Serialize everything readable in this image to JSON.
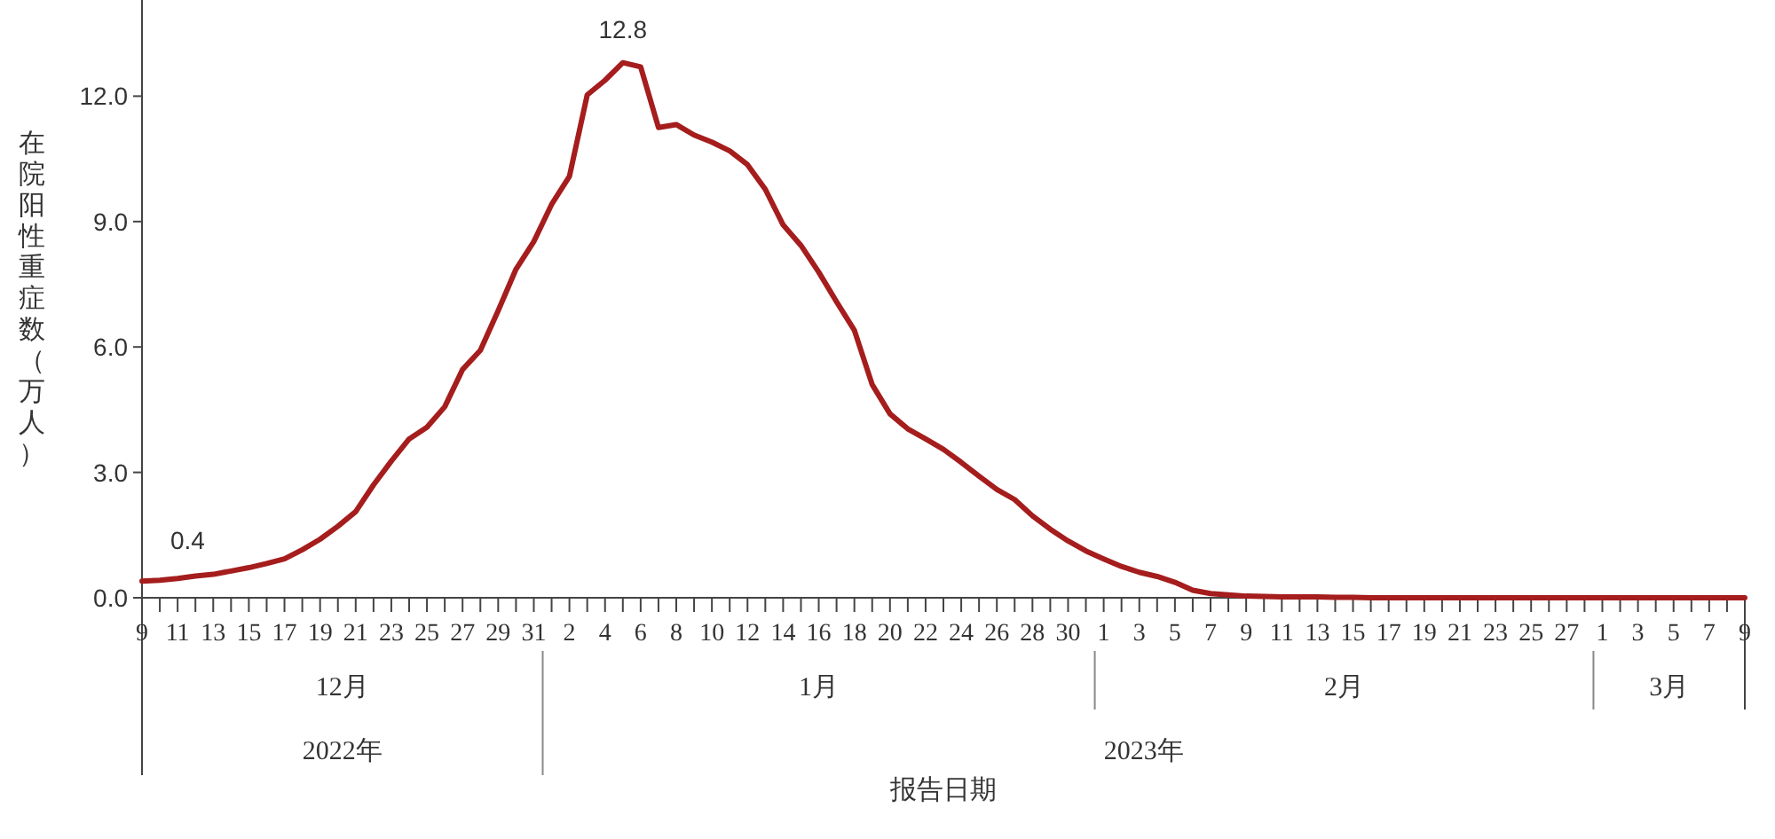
{
  "chart_data": {
    "type": "line",
    "xlabel": "报告日期",
    "ylabel": "在院阳性重症数（万人）",
    "annotations": [
      "12月",
      "1月",
      "2月",
      "3月",
      "2022年",
      "2023年"
    ],
    "x": [
      "2022-12-09",
      "2022-12-10",
      "2022-12-11",
      "2022-12-12",
      "2022-12-13",
      "2022-12-14",
      "2022-12-15",
      "2022-12-16",
      "2022-12-17",
      "2022-12-18",
      "2022-12-19",
      "2022-12-20",
      "2022-12-21",
      "2022-12-22",
      "2022-12-23",
      "2022-12-24",
      "2022-12-25",
      "2022-12-26",
      "2022-12-27",
      "2022-12-28",
      "2022-12-29",
      "2022-12-30",
      "2022-12-31",
      "2023-01-01",
      "2023-01-02",
      "2023-01-03",
      "2023-01-04",
      "2023-01-05",
      "2023-01-06",
      "2023-01-07",
      "2023-01-08",
      "2023-01-09",
      "2023-01-10",
      "2023-01-11",
      "2023-01-12",
      "2023-01-13",
      "2023-01-14",
      "2023-01-15",
      "2023-01-16",
      "2023-01-17",
      "2023-01-18",
      "2023-01-19",
      "2023-01-20",
      "2023-01-21",
      "2023-01-22",
      "2023-01-23",
      "2023-01-24",
      "2023-01-25",
      "2023-01-26",
      "2023-01-27",
      "2023-01-28",
      "2023-01-29",
      "2023-01-30",
      "2023-01-31",
      "2023-02-01",
      "2023-02-02",
      "2023-02-03",
      "2023-02-04",
      "2023-02-05",
      "2023-02-06",
      "2023-02-07",
      "2023-02-08",
      "2023-02-09",
      "2023-02-10",
      "2023-02-11",
      "2023-02-12",
      "2023-02-13",
      "2023-02-14",
      "2023-02-15",
      "2023-02-16",
      "2023-02-17",
      "2023-02-18",
      "2023-02-19",
      "2023-02-20",
      "2023-02-21",
      "2023-02-22",
      "2023-02-23",
      "2023-02-24",
      "2023-02-25",
      "2023-02-26",
      "2023-02-27",
      "2023-02-28",
      "2023-03-01",
      "2023-03-02",
      "2023-03-03",
      "2023-03-04",
      "2023-03-05",
      "2023-03-06",
      "2023-03-07",
      "2023-03-08",
      "2023-03-09"
    ],
    "series": [
      {
        "color": "#a51d1d",
        "values": [
          0.4,
          0.42,
          0.46,
          0.52,
          0.56,
          0.64,
          0.72,
          0.82,
          0.93,
          1.15,
          1.4,
          1.71,
          2.06,
          2.7,
          3.27,
          3.8,
          4.08,
          4.57,
          5.46,
          5.92,
          6.87,
          7.86,
          8.52,
          9.41,
          10.08,
          12.03,
          12.38,
          12.8,
          12.7,
          11.25,
          11.32,
          11.07,
          10.9,
          10.69,
          10.36,
          9.77,
          8.92,
          8.43,
          7.79,
          7.08,
          6.4,
          5.1,
          4.4,
          4.04,
          3.8,
          3.55,
          3.24,
          2.91,
          2.59,
          2.35,
          1.96,
          1.64,
          1.36,
          1.12,
          0.93,
          0.75,
          0.61,
          0.51,
          0.37,
          0.18,
          0.1,
          0.07,
          0.04,
          0.03,
          0.02,
          0.02,
          0.02,
          0.01,
          0.01,
          0,
          0,
          0,
          0,
          0,
          0,
          0,
          0,
          0,
          0,
          0,
          0,
          0,
          0,
          0,
          0,
          0,
          0,
          0,
          0,
          0,
          0
        ],
        "value_labels": [
          "0.4",
          null,
          null,
          null,
          null,
          null,
          null,
          null,
          null,
          null,
          null,
          null,
          null,
          null,
          null,
          null,
          null,
          null,
          null,
          null,
          null,
          null,
          null,
          null,
          null,
          null,
          null,
          "12.8",
          null,
          null,
          null,
          null,
          null,
          null,
          null,
          null,
          null,
          null,
          null,
          null,
          null,
          null,
          null,
          null,
          null,
          null,
          null,
          null,
          null,
          null,
          null,
          null,
          null,
          null,
          null,
          null,
          null,
          null,
          null,
          null,
          null,
          null,
          null,
          null,
          null,
          null,
          null,
          null,
          null,
          null,
          null,
          null,
          null,
          null,
          null,
          null,
          null,
          null,
          null,
          null,
          null,
          null,
          null,
          null,
          null,
          null,
          null,
          null,
          null,
          null,
          null
        ]
      }
    ],
    "xlim": [
      "2022-12-09",
      "2023-03-09"
    ],
    "xticks": [
      {
        "value": "2022-12-09",
        "label": "9"
      },
      {
        "value": "2022-12-10",
        "label": null
      },
      {
        "value": "2022-12-11",
        "label": "11"
      },
      {
        "value": "2022-12-12",
        "label": null
      },
      {
        "value": "2022-12-13",
        "label": "13"
      },
      {
        "value": "2022-12-14",
        "label": null
      },
      {
        "value": "2022-12-15",
        "label": "15"
      },
      {
        "value": "2022-12-16",
        "label": null
      },
      {
        "value": "2022-12-17",
        "label": "17"
      },
      {
        "value": "2022-12-18",
        "label": null
      },
      {
        "value": "2022-12-19",
        "label": "19"
      },
      {
        "value": "2022-12-20",
        "label": null
      },
      {
        "value": "2022-12-21",
        "label": "21"
      },
      {
        "value": "2022-12-22",
        "label": null
      },
      {
        "value": "2022-12-23",
        "label": "23"
      },
      {
        "value": "2022-12-24",
        "label": null
      },
      {
        "value": "2022-12-25",
        "label": "25"
      },
      {
        "value": "2022-12-26",
        "label": null
      },
      {
        "value": "2022-12-27",
        "label": "27"
      },
      {
        "value": "2022-12-28",
        "label": null
      },
      {
        "value": "2022-12-29",
        "label": "29"
      },
      {
        "value": "2022-12-30",
        "label": null
      },
      {
        "value": "2022-12-31",
        "label": "31"
      },
      {
        "value": "2023-01-01",
        "label": null
      },
      {
        "value": "2023-01-02",
        "label": "2"
      },
      {
        "value": "2023-01-03",
        "label": null
      },
      {
        "value": "2023-01-04",
        "label": "4"
      },
      {
        "value": "2023-01-05",
        "label": null
      },
      {
        "value": "2023-01-06",
        "label": "6"
      },
      {
        "value": "2023-01-07",
        "label": null
      },
      {
        "value": "2023-01-08",
        "label": "8"
      },
      {
        "value": "2023-01-09",
        "label": null
      },
      {
        "value": "2023-01-10",
        "label": "10"
      },
      {
        "value": "2023-01-11",
        "label": null
      },
      {
        "value": "2023-01-12",
        "label": "12"
      },
      {
        "value": "2023-01-13",
        "label": null
      },
      {
        "value": "2023-01-14",
        "label": "14"
      },
      {
        "value": "2023-01-15",
        "label": null
      },
      {
        "value": "2023-01-16",
        "label": "16"
      },
      {
        "value": "2023-01-17",
        "label": null
      },
      {
        "value": "2023-01-18",
        "label": "18"
      },
      {
        "value": "2023-01-19",
        "label": null
      },
      {
        "value": "2023-01-20",
        "label": "20"
      },
      {
        "value": "2023-01-21",
        "label": null
      },
      {
        "value": "2023-01-22",
        "label": "22"
      },
      {
        "value": "2023-01-23",
        "label": null
      },
      {
        "value": "2023-01-24",
        "label": "24"
      },
      {
        "value": "2023-01-25",
        "label": null
      },
      {
        "value": "2023-01-26",
        "label": "26"
      },
      {
        "value": "2023-01-27",
        "label": null
      },
      {
        "value": "2023-01-28",
        "label": "28"
      },
      {
        "value": "2023-01-29",
        "label": null
      },
      {
        "value": "2023-01-30",
        "label": "30"
      },
      {
        "value": "2023-01-31",
        "label": null
      },
      {
        "value": "2023-02-01",
        "label": "1"
      },
      {
        "value": "2023-02-02",
        "label": null
      },
      {
        "value": "2023-02-03",
        "label": "3"
      },
      {
        "value": "2023-02-04",
        "label": null
      },
      {
        "value": "2023-02-05",
        "label": "5"
      },
      {
        "value": "2023-02-06",
        "label": null
      },
      {
        "value": "2023-02-07",
        "label": "7"
      },
      {
        "value": "2023-02-08",
        "label": null
      },
      {
        "value": "2023-02-09",
        "label": "9"
      },
      {
        "value": "2023-02-10",
        "label": null
      },
      {
        "value": "2023-02-11",
        "label": "11"
      },
      {
        "value": "2023-02-12",
        "label": null
      },
      {
        "value": "2023-02-13",
        "label": "13"
      },
      {
        "value": "2023-02-14",
        "label": null
      },
      {
        "value": "2023-02-15",
        "label": "15"
      },
      {
        "value": "2023-02-16",
        "label": null
      },
      {
        "value": "2023-02-17",
        "label": "17"
      },
      {
        "value": "2023-02-18",
        "label": null
      },
      {
        "value": "2023-02-19",
        "label": "19"
      },
      {
        "value": "2023-02-20",
        "label": null
      },
      {
        "value": "2023-02-21",
        "label": "21"
      },
      {
        "value": "2023-02-22",
        "label": null
      },
      {
        "value": "2023-02-23",
        "label": "23"
      },
      {
        "value": "2023-02-24",
        "label": null
      },
      {
        "value": "2023-02-25",
        "label": "25"
      },
      {
        "value": "2023-02-26",
        "label": null
      },
      {
        "value": "2023-02-27",
        "label": "27"
      },
      {
        "value": "2023-02-28",
        "label": null
      },
      {
        "value": "2023-03-01",
        "label": "1"
      },
      {
        "value": "2023-03-02",
        "label": null
      },
      {
        "value": "2023-03-03",
        "label": "3"
      },
      {
        "value": "2023-03-04",
        "label": null
      },
      {
        "value": "2023-03-05",
        "label": "5"
      },
      {
        "value": "2023-03-06",
        "label": null
      },
      {
        "value": "2023-03-07",
        "label": "7"
      },
      {
        "value": "2023-03-08",
        "label": null
      },
      {
        "value": "2023-03-09",
        "label": "9"
      }
    ],
    "ylim": [
      0,
      14.3
    ],
    "yticks": [
      {
        "value": 0,
        "label": "0.0"
      },
      {
        "value": 3,
        "label": "3.0"
      },
      {
        "value": 6,
        "label": "6.0"
      },
      {
        "value": 9,
        "label": "9.0"
      },
      {
        "value": 12,
        "label": "12.0"
      }
    ],
    "grid": false,
    "marker": "none",
    "line_style": "solid"
  }
}
